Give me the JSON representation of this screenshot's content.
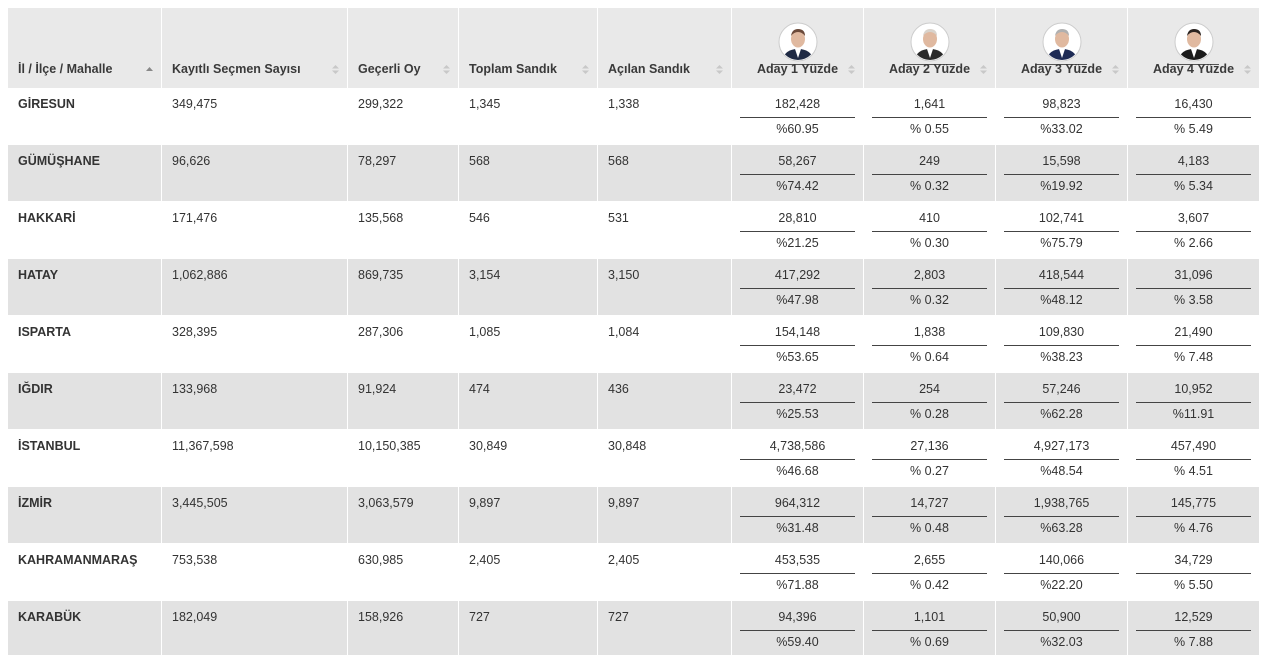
{
  "header": {
    "columns": [
      "İl / İlçe / Mahalle",
      "Kayıtlı Seçmen Sayısı",
      "Geçerli Oy",
      "Toplam Sandık",
      "Açılan Sandık",
      "Aday 1 Yüzde",
      "Aday 2 Yüzde",
      "Aday 3 Yüzde",
      "Aday 4 Yüzde"
    ]
  },
  "rows": [
    {
      "name": "GİRESUN",
      "registered": "349,475",
      "valid": "299,322",
      "total_boxes": "1,345",
      "opened_boxes": "1,338",
      "candidates": [
        {
          "votes": "182,428",
          "percent": "%60.95"
        },
        {
          "votes": "1,641",
          "percent": "% 0.55"
        },
        {
          "votes": "98,823",
          "percent": "%33.02"
        },
        {
          "votes": "16,430",
          "percent": "% 5.49"
        }
      ]
    },
    {
      "name": "GÜMÜŞHANE",
      "registered": "96,626",
      "valid": "78,297",
      "total_boxes": "568",
      "opened_boxes": "568",
      "candidates": [
        {
          "votes": "58,267",
          "percent": "%74.42"
        },
        {
          "votes": "249",
          "percent": "% 0.32"
        },
        {
          "votes": "15,598",
          "percent": "%19.92"
        },
        {
          "votes": "4,183",
          "percent": "% 5.34"
        }
      ]
    },
    {
      "name": "HAKKARİ",
      "registered": "171,476",
      "valid": "135,568",
      "total_boxes": "546",
      "opened_boxes": "531",
      "candidates": [
        {
          "votes": "28,810",
          "percent": "%21.25"
        },
        {
          "votes": "410",
          "percent": "% 0.30"
        },
        {
          "votes": "102,741",
          "percent": "%75.79"
        },
        {
          "votes": "3,607",
          "percent": "% 2.66"
        }
      ]
    },
    {
      "name": "HATAY",
      "registered": "1,062,886",
      "valid": "869,735",
      "total_boxes": "3,154",
      "opened_boxes": "3,150",
      "candidates": [
        {
          "votes": "417,292",
          "percent": "%47.98"
        },
        {
          "votes": "2,803",
          "percent": "% 0.32"
        },
        {
          "votes": "418,544",
          "percent": "%48.12"
        },
        {
          "votes": "31,096",
          "percent": "% 3.58"
        }
      ]
    },
    {
      "name": "ISPARTA",
      "registered": "328,395",
      "valid": "287,306",
      "total_boxes": "1,085",
      "opened_boxes": "1,084",
      "candidates": [
        {
          "votes": "154,148",
          "percent": "%53.65"
        },
        {
          "votes": "1,838",
          "percent": "% 0.64"
        },
        {
          "votes": "109,830",
          "percent": "%38.23"
        },
        {
          "votes": "21,490",
          "percent": "% 7.48"
        }
      ]
    },
    {
      "name": "IĞDIR",
      "registered": "133,968",
      "valid": "91,924",
      "total_boxes": "474",
      "opened_boxes": "436",
      "candidates": [
        {
          "votes": "23,472",
          "percent": "%25.53"
        },
        {
          "votes": "254",
          "percent": "% 0.28"
        },
        {
          "votes": "57,246",
          "percent": "%62.28"
        },
        {
          "votes": "10,952",
          "percent": "%11.91"
        }
      ]
    },
    {
      "name": "İSTANBUL",
      "registered": "11,367,598",
      "valid": "10,150,385",
      "total_boxes": "30,849",
      "opened_boxes": "30,848",
      "candidates": [
        {
          "votes": "4,738,586",
          "percent": "%46.68"
        },
        {
          "votes": "27,136",
          "percent": "% 0.27"
        },
        {
          "votes": "4,927,173",
          "percent": "%48.54"
        },
        {
          "votes": "457,490",
          "percent": "% 4.51"
        }
      ]
    },
    {
      "name": "İZMİR",
      "registered": "3,445,505",
      "valid": "3,063,579",
      "total_boxes": "9,897",
      "opened_boxes": "9,897",
      "candidates": [
        {
          "votes": "964,312",
          "percent": "%31.48"
        },
        {
          "votes": "14,727",
          "percent": "% 0.48"
        },
        {
          "votes": "1,938,765",
          "percent": "%63.28"
        },
        {
          "votes": "145,775",
          "percent": "% 4.76"
        }
      ]
    },
    {
      "name": "KAHRAMANMARAŞ",
      "registered": "753,538",
      "valid": "630,985",
      "total_boxes": "2,405",
      "opened_boxes": "2,405",
      "candidates": [
        {
          "votes": "453,535",
          "percent": "%71.88"
        },
        {
          "votes": "2,655",
          "percent": "% 0.42"
        },
        {
          "votes": "140,066",
          "percent": "%22.20"
        },
        {
          "votes": "34,729",
          "percent": "% 5.50"
        }
      ]
    },
    {
      "name": "KARABÜK",
      "registered": "182,049",
      "valid": "158,926",
      "total_boxes": "727",
      "opened_boxes": "727",
      "candidates": [
        {
          "votes": "94,396",
          "percent": "%59.40"
        },
        {
          "votes": "1,101",
          "percent": "% 0.69"
        },
        {
          "votes": "50,900",
          "percent": "%32.03"
        },
        {
          "votes": "12,529",
          "percent": "% 7.88"
        }
      ]
    }
  ]
}
